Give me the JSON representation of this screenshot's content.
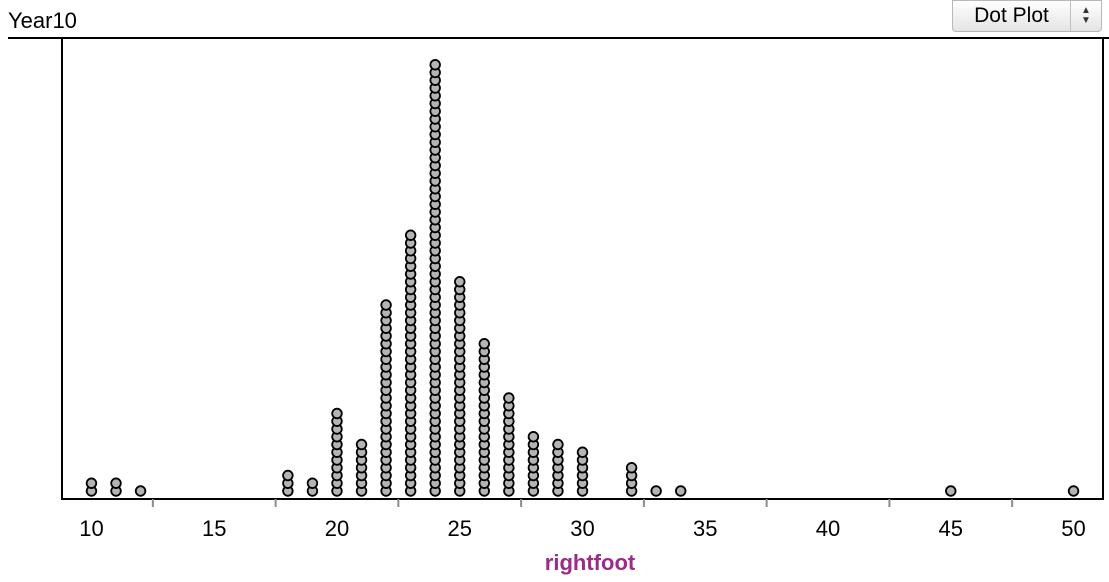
{
  "title": "Year10",
  "plot_type_control": {
    "label": "Dot Plot",
    "icon": "up-down-arrows-icon"
  },
  "chart_data": {
    "type": "dot plot",
    "xlabel": "rightfoot",
    "xlim": [
      8.8,
      51.2
    ],
    "xticks": [
      10,
      15,
      20,
      25,
      30,
      35,
      40,
      45,
      50
    ],
    "x_tick_labels": [
      "10",
      "15",
      "20",
      "25",
      "30",
      "35",
      "40",
      "45",
      "50"
    ],
    "dot_color": "#b4b4b4",
    "dot_stroke": "#000000",
    "counts": [
      {
        "x": 10,
        "n": 2
      },
      {
        "x": 11,
        "n": 2
      },
      {
        "x": 12,
        "n": 1
      },
      {
        "x": 18,
        "n": 3
      },
      {
        "x": 19,
        "n": 2
      },
      {
        "x": 20,
        "n": 11
      },
      {
        "x": 21,
        "n": 7
      },
      {
        "x": 22,
        "n": 25
      },
      {
        "x": 23,
        "n": 34
      },
      {
        "x": 24,
        "n": 56
      },
      {
        "x": 25,
        "n": 28
      },
      {
        "x": 26,
        "n": 20
      },
      {
        "x": 27,
        "n": 13
      },
      {
        "x": 28,
        "n": 8
      },
      {
        "x": 29,
        "n": 7
      },
      {
        "x": 30,
        "n": 6
      },
      {
        "x": 32,
        "n": 4
      },
      {
        "x": 33,
        "n": 1
      },
      {
        "x": 34,
        "n": 1
      },
      {
        "x": 45,
        "n": 1
      },
      {
        "x": 50,
        "n": 1
      }
    ]
  },
  "xlabel_color": "#9b2c87"
}
